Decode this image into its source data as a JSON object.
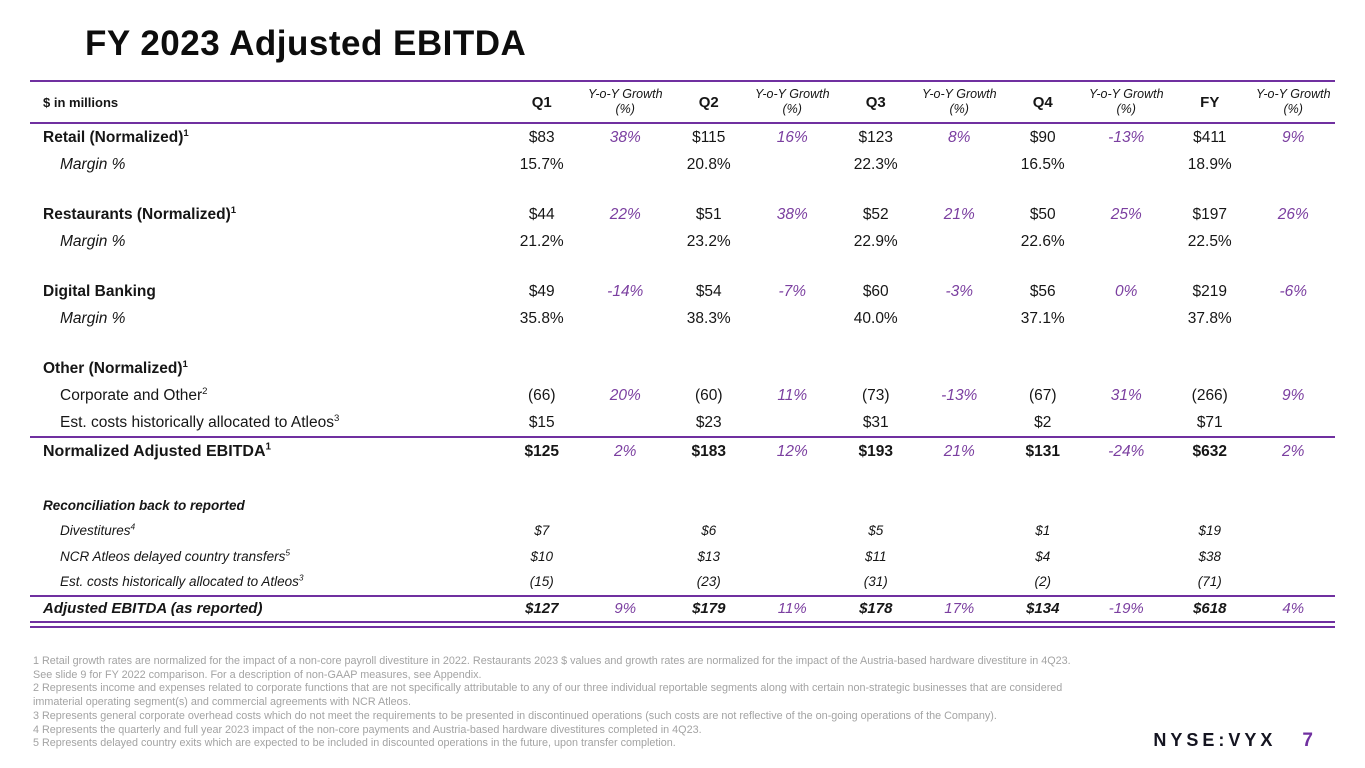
{
  "slide": {
    "title": "FY 2023 Adjusted EBITDA",
    "ticker": "NYSE:VYX",
    "page_number": "7"
  },
  "colors": {
    "accent_purple": "#7030A0",
    "growth_text_purple": "#7B3FA0",
    "footnote_gray": "#A3A3A3"
  },
  "table": {
    "unit_label": "$ in millions",
    "header": [
      {
        "label": "Q1",
        "kind": "period"
      },
      {
        "label": "Y-o-Y Growth (%)",
        "kind": "growth"
      },
      {
        "label": "Q2",
        "kind": "period"
      },
      {
        "label": "Y-o-Y Growth (%)",
        "kind": "growth"
      },
      {
        "label": "Q3",
        "kind": "period"
      },
      {
        "label": "Y-o-Y Growth (%)",
        "kind": "growth"
      },
      {
        "label": "Q4",
        "kind": "period"
      },
      {
        "label": "Y-o-Y Growth (%)",
        "kind": "growth"
      },
      {
        "label": "FY",
        "kind": "period"
      },
      {
        "label": "Y-o-Y Growth (%)",
        "kind": "growth"
      }
    ],
    "rows": [
      {
        "type": "section",
        "label": "Retail (Normalized)",
        "sup": "1",
        "cells": [
          "$83",
          "38%",
          "$115",
          "16%",
          "$123",
          "8%",
          "$90",
          "-13%",
          "$411",
          "9%"
        ]
      },
      {
        "type": "margin",
        "label": "Margin %",
        "sup": "",
        "cells": [
          "15.7%",
          "",
          "20.8%",
          "",
          "22.3%",
          "",
          "16.5%",
          "",
          "18.9%",
          ""
        ]
      },
      {
        "type": "spacer"
      },
      {
        "type": "section",
        "label": "Restaurants (Normalized)",
        "sup": "1",
        "cells": [
          "$44",
          "22%",
          "$51",
          "38%",
          "$52",
          "21%",
          "$50",
          "25%",
          "$197",
          "26%"
        ]
      },
      {
        "type": "margin",
        "label": "Margin %",
        "sup": "",
        "cells": [
          "21.2%",
          "",
          "23.2%",
          "",
          "22.9%",
          "",
          "22.6%",
          "",
          "22.5%",
          ""
        ]
      },
      {
        "type": "spacer"
      },
      {
        "type": "section",
        "label": "Digital Banking",
        "sup": "",
        "cells": [
          "$49",
          "-14%",
          "$54",
          "-7%",
          "$60",
          "-3%",
          "$56",
          "0%",
          "$219",
          "-6%"
        ]
      },
      {
        "type": "margin",
        "label": "Margin %",
        "sup": "",
        "cells": [
          "35.8%",
          "",
          "38.3%",
          "",
          "40.0%",
          "",
          "37.1%",
          "",
          "37.8%",
          ""
        ]
      },
      {
        "type": "spacer"
      },
      {
        "type": "section",
        "label": "Other (Normalized)",
        "sup": "1",
        "cells": [
          "",
          "",
          "",
          "",
          "",
          "",
          "",
          "",
          "",
          ""
        ]
      },
      {
        "type": "sub",
        "label": "Corporate and Other",
        "sup": "2",
        "cells": [
          "(66)",
          "20%",
          "(60)",
          "11%",
          "(73)",
          "-13%",
          "(67)",
          "31%",
          "(266)",
          "9%"
        ]
      },
      {
        "type": "sub",
        "label": "Est. costs historically allocated to Atleos",
        "sup": "3",
        "cells": [
          "$15",
          "",
          "$23",
          "",
          "$31",
          "",
          "$2",
          "",
          "$71",
          ""
        ]
      },
      {
        "type": "total",
        "label": "Normalized Adjusted EBITDA",
        "sup": "1",
        "cells": [
          "$125",
          "2%",
          "$183",
          "12%",
          "$193",
          "21%",
          "$131",
          "-24%",
          "$632",
          "2%"
        ]
      },
      {
        "type": "gap-lg"
      },
      {
        "type": "recon-header",
        "label": "Reconciliation back to reported",
        "sup": "",
        "cells": [
          "",
          "",
          "",
          "",
          "",
          "",
          "",
          "",
          "",
          ""
        ]
      },
      {
        "type": "recon",
        "label": "Divestitures",
        "sup": "4",
        "cells": [
          "$7",
          "",
          "$6",
          "",
          "$5",
          "",
          "$1",
          "",
          "$19",
          ""
        ]
      },
      {
        "type": "recon",
        "label": "NCR Atleos delayed country transfers",
        "sup": "5",
        "cells": [
          "$10",
          "",
          "$13",
          "",
          "$11",
          "",
          "$4",
          "",
          "$38",
          ""
        ]
      },
      {
        "type": "recon",
        "label": "Est. costs historically allocated to Atleos",
        "sup": "3",
        "cells": [
          "(15)",
          "",
          "(23)",
          "",
          "(31)",
          "",
          "(2)",
          "",
          "(71)",
          ""
        ]
      },
      {
        "type": "reported",
        "label": "Adjusted EBITDA (as reported)",
        "sup": "",
        "cells": [
          "$127",
          "9%",
          "$179",
          "11%",
          "$178",
          "17%",
          "$134",
          "-19%",
          "$618",
          "4%"
        ]
      }
    ]
  },
  "footnotes": {
    "lines": [
      "1 Retail growth rates are normalized for the impact of a non-core payroll divestiture in 2022. Restaurants 2023 $ values and growth rates are normalized for the impact of the Austria-based hardware divestiture in 4Q23.",
      "See slide 9 for FY 2022 comparison. For a description of non-GAAP measures, see Appendix.",
      "2 Represents income and expenses related to corporate functions that are not specifically attributable to any of our three individual reportable segments along with certain non-strategic businesses that are considered",
      "immaterial operating segment(s) and commercial agreements with NCR Atleos.",
      "3 Represents general corporate overhead costs which do not meet the requirements to be presented in discontinued operations (such costs are not reflective of the on-going operations of the Company).",
      "4 Represents the quarterly and full year 2023 impact of the non-core payments and Austria-based hardware divestitures completed in 4Q23.",
      "5 Represents delayed country exits which are expected to be included in discounted operations in the future, upon transfer completion."
    ]
  }
}
